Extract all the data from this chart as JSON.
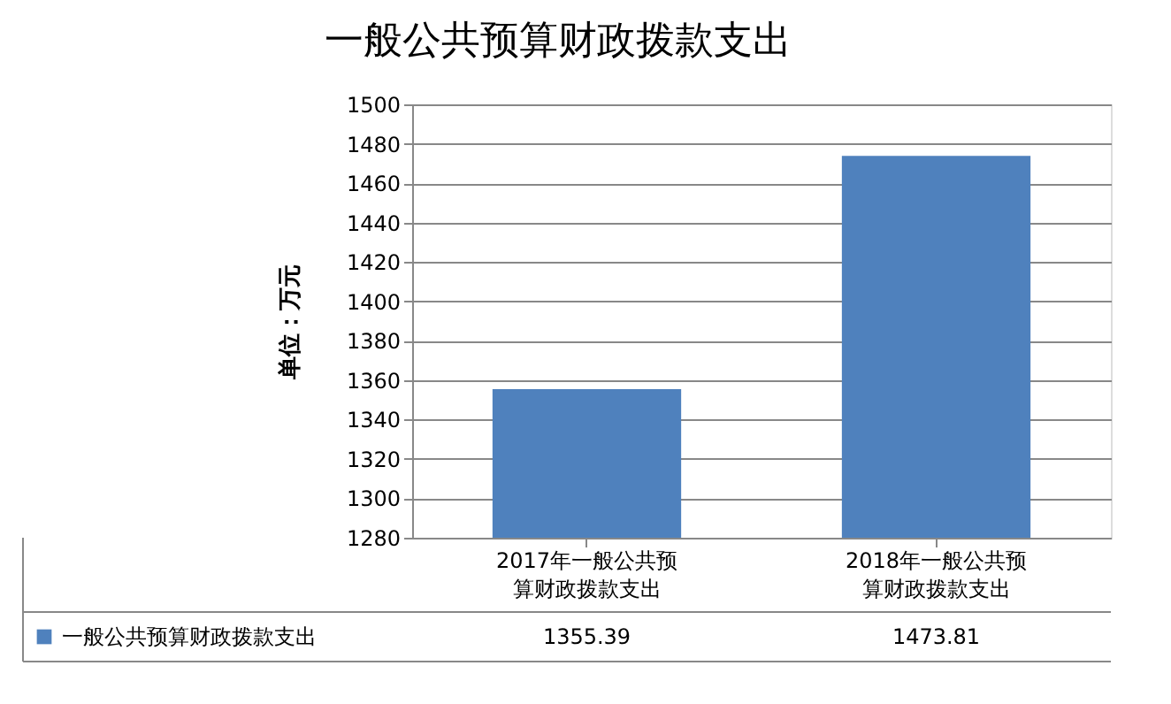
{
  "chart_data": {
    "type": "bar",
    "title": "一般公共预算财政拨款支出",
    "ylabel": "单位：万元",
    "categories": [
      "2017年一般公共预算财政拨款支出",
      "2018年一般公共预算财政拨款支出"
    ],
    "series": [
      {
        "name": "一般公共预算财政拨款支出",
        "color": "#4f81bd",
        "values": [
          1355.39,
          1473.81
        ]
      }
    ],
    "ylim": [
      1280,
      1500
    ],
    "yticks": [
      1280,
      1300,
      1320,
      1340,
      1360,
      1380,
      1400,
      1420,
      1440,
      1460,
      1480,
      1500
    ],
    "grid": "y",
    "legend": "bottom",
    "data_labels": true
  }
}
